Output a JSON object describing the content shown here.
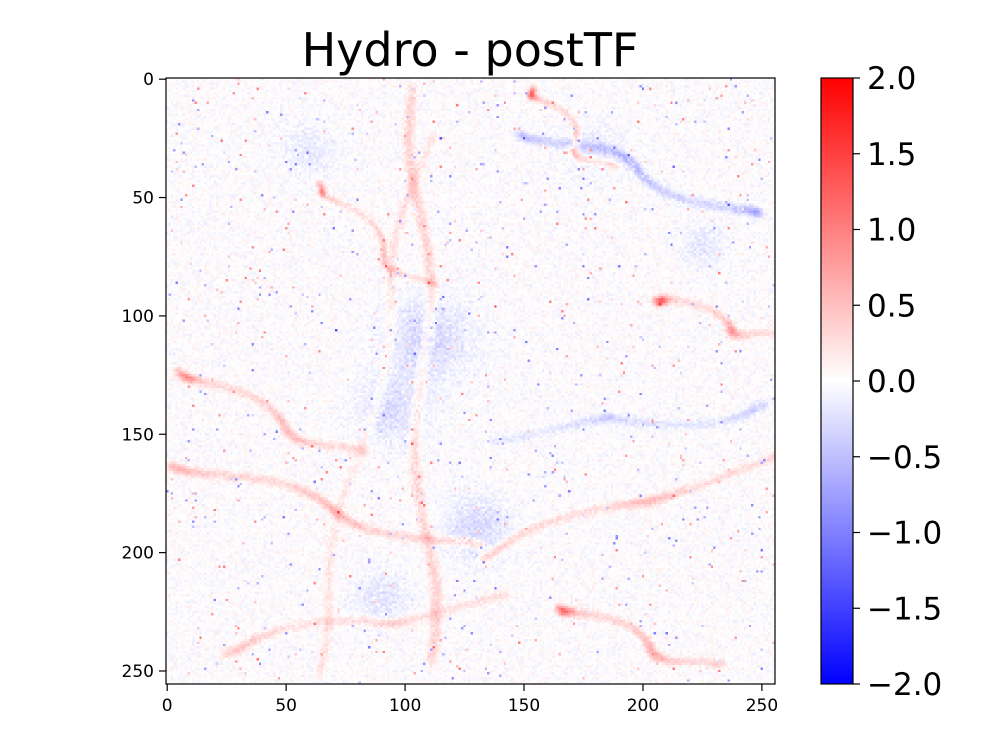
{
  "chart_data": {
    "type": "heatmap",
    "title": "Hydro - postTF",
    "xlabel": "",
    "ylabel": "",
    "grid_size": 256,
    "xlim": [
      0,
      255
    ],
    "ylim": [
      255,
      0
    ],
    "x_ticks": [
      "0",
      "50",
      "100",
      "150",
      "200",
      "250"
    ],
    "y_ticks": [
      "0",
      "50",
      "100",
      "150",
      "200",
      "250"
    ],
    "colormap": "bwr",
    "colors": {
      "min": "#0000ff",
      "mid": "#ffffff",
      "max": "#ff0000"
    },
    "colorbar": {
      "vmin": -2.0,
      "vmax": 2.0,
      "ticks": [
        "2.0",
        "1.5",
        "1.0",
        "0.5",
        "0.0",
        "−0.5",
        "−1.0",
        "−1.5",
        "−2.0"
      ]
    },
    "value_summary": "values mostly near 0 (range about -1.0 to 1.0), with faint red and blue filament structures"
  }
}
